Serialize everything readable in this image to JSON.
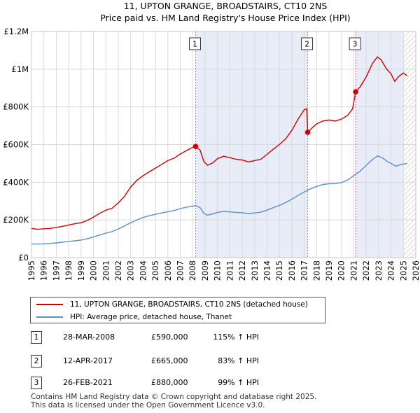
{
  "chart_data": {
    "type": "line",
    "title": "11, UPTON GRANGE, BROADSTAIRS, CT10 2NS",
    "subtitle": "Price paid vs. HM Land Registry's House Price Index (HPI)",
    "xlim": [
      1995,
      2026
    ],
    "ylim": [
      0,
      1200000
    ],
    "x_ticks": [
      "1995",
      "1996",
      "1997",
      "1998",
      "1999",
      "2000",
      "2001",
      "2002",
      "2003",
      "2004",
      "2005",
      "2006",
      "2007",
      "2008",
      "2009",
      "2010",
      "2011",
      "2012",
      "2013",
      "2014",
      "2015",
      "2016",
      "2017",
      "2018",
      "2019",
      "2020",
      "2021",
      "2022",
      "2023",
      "2024",
      "2025",
      "2026"
    ],
    "y_ticks": [
      {
        "value": 0,
        "label": "£0"
      },
      {
        "value": 200000,
        "label": "£200K"
      },
      {
        "value": 400000,
        "label": "£400K"
      },
      {
        "value": 600000,
        "label": "£600K"
      },
      {
        "value": 800000,
        "label": "£800K"
      },
      {
        "value": 1000000,
        "label": "£1M"
      },
      {
        "value": 1200000,
        "label": "£1.2M"
      }
    ],
    "grid": true,
    "shaded_periods": [
      [
        2008.24,
        2017.28
      ],
      [
        2021.15,
        2025.0
      ]
    ],
    "hatched_from": 2025.0,
    "series": [
      {
        "name": "11, UPTON GRANGE, BROADSTAIRS, CT10 2NS (detached house)",
        "color": "#cc0000",
        "points": [
          [
            1995.0,
            155000
          ],
          [
            1995.5,
            150000
          ],
          [
            1996.0,
            153000
          ],
          [
            1996.5,
            155000
          ],
          [
            1997.0,
            160000
          ],
          [
            1997.5,
            166000
          ],
          [
            1998.0,
            173000
          ],
          [
            1998.5,
            180000
          ],
          [
            1999.0,
            185000
          ],
          [
            1999.5,
            197000
          ],
          [
            2000.0,
            215000
          ],
          [
            2000.5,
            235000
          ],
          [
            2001.0,
            252000
          ],
          [
            2001.5,
            262000
          ],
          [
            2002.0,
            290000
          ],
          [
            2002.5,
            325000
          ],
          [
            2003.0,
            375000
          ],
          [
            2003.5,
            410000
          ],
          [
            2004.0,
            435000
          ],
          [
            2004.5,
            455000
          ],
          [
            2005.0,
            475000
          ],
          [
            2005.5,
            495000
          ],
          [
            2006.0,
            515000
          ],
          [
            2006.5,
            528000
          ],
          [
            2007.0,
            550000
          ],
          [
            2007.5,
            568000
          ],
          [
            2008.0,
            585000
          ],
          [
            2008.24,
            590000
          ],
          [
            2008.6,
            570000
          ],
          [
            2008.9,
            510000
          ],
          [
            2009.2,
            490000
          ],
          [
            2009.6,
            502000
          ],
          [
            2010.0,
            525000
          ],
          [
            2010.5,
            538000
          ],
          [
            2011.0,
            530000
          ],
          [
            2011.5,
            522000
          ],
          [
            2012.0,
            518000
          ],
          [
            2012.5,
            508000
          ],
          [
            2013.0,
            515000
          ],
          [
            2013.5,
            522000
          ],
          [
            2014.0,
            548000
          ],
          [
            2014.5,
            575000
          ],
          [
            2015.0,
            600000
          ],
          [
            2015.5,
            630000
          ],
          [
            2016.0,
            675000
          ],
          [
            2016.5,
            735000
          ],
          [
            2017.0,
            785000
          ],
          [
            2017.2,
            790000
          ],
          [
            2017.28,
            665000
          ],
          [
            2017.5,
            680000
          ],
          [
            2018.0,
            710000
          ],
          [
            2018.5,
            725000
          ],
          [
            2019.0,
            730000
          ],
          [
            2019.5,
            725000
          ],
          [
            2020.0,
            735000
          ],
          [
            2020.5,
            755000
          ],
          [
            2020.9,
            790000
          ],
          [
            2021.15,
            880000
          ],
          [
            2021.5,
            905000
          ],
          [
            2022.0,
            960000
          ],
          [
            2022.5,
            1030000
          ],
          [
            2022.9,
            1065000
          ],
          [
            2023.2,
            1050000
          ],
          [
            2023.6,
            1005000
          ],
          [
            2024.0,
            975000
          ],
          [
            2024.3,
            935000
          ],
          [
            2024.6,
            960000
          ],
          [
            2025.0,
            980000
          ],
          [
            2025.3,
            965000
          ]
        ]
      },
      {
        "name": "HPI: Average price, detached house, Thanet",
        "color": "#5b8fc9",
        "points": [
          [
            1995.0,
            72000
          ],
          [
            1995.5,
            72000
          ],
          [
            1996.0,
            73000
          ],
          [
            1996.5,
            75000
          ],
          [
            1997.0,
            78000
          ],
          [
            1997.5,
            82000
          ],
          [
            1998.0,
            86000
          ],
          [
            1998.5,
            89000
          ],
          [
            1999.0,
            93000
          ],
          [
            1999.5,
            100000
          ],
          [
            2000.0,
            110000
          ],
          [
            2000.5,
            120000
          ],
          [
            2001.0,
            130000
          ],
          [
            2001.5,
            138000
          ],
          [
            2002.0,
            152000
          ],
          [
            2002.5,
            168000
          ],
          [
            2003.0,
            185000
          ],
          [
            2003.5,
            200000
          ],
          [
            2004.0,
            213000
          ],
          [
            2004.5,
            222000
          ],
          [
            2005.0,
            230000
          ],
          [
            2005.5,
            237000
          ],
          [
            2006.0,
            243000
          ],
          [
            2006.5,
            250000
          ],
          [
            2007.0,
            260000
          ],
          [
            2007.5,
            268000
          ],
          [
            2008.0,
            273000
          ],
          [
            2008.3,
            275000
          ],
          [
            2008.6,
            265000
          ],
          [
            2008.9,
            235000
          ],
          [
            2009.2,
            225000
          ],
          [
            2009.6,
            232000
          ],
          [
            2010.0,
            240000
          ],
          [
            2010.5,
            245000
          ],
          [
            2011.0,
            243000
          ],
          [
            2011.5,
            240000
          ],
          [
            2012.0,
            238000
          ],
          [
            2012.5,
            234000
          ],
          [
            2013.0,
            237000
          ],
          [
            2013.5,
            241000
          ],
          [
            2014.0,
            252000
          ],
          [
            2014.5,
            265000
          ],
          [
            2015.0,
            277000
          ],
          [
            2015.5,
            292000
          ],
          [
            2016.0,
            310000
          ],
          [
            2016.5,
            330000
          ],
          [
            2017.0,
            348000
          ],
          [
            2017.5,
            365000
          ],
          [
            2018.0,
            378000
          ],
          [
            2018.5,
            388000
          ],
          [
            2019.0,
            392000
          ],
          [
            2019.5,
            393000
          ],
          [
            2020.0,
            398000
          ],
          [
            2020.5,
            412000
          ],
          [
            2021.0,
            435000
          ],
          [
            2021.5,
            458000
          ],
          [
            2022.0,
            490000
          ],
          [
            2022.5,
            520000
          ],
          [
            2022.9,
            540000
          ],
          [
            2023.3,
            530000
          ],
          [
            2023.7,
            510000
          ],
          [
            2024.0,
            500000
          ],
          [
            2024.4,
            485000
          ],
          [
            2024.8,
            495000
          ],
          [
            2025.3,
            500000
          ]
        ]
      }
    ],
    "markers": [
      {
        "label": "1",
        "date": 2008.24,
        "price": 590000
      },
      {
        "label": "2",
        "date": 2017.28,
        "price": 665000
      },
      {
        "label": "3",
        "date": 2021.15,
        "price": 880000
      }
    ]
  },
  "legend": {
    "property_label": "11, UPTON GRANGE, BROADSTAIRS, CT10 2NS (detached house)",
    "hpi_label": "HPI: Average price, detached house, Thanet"
  },
  "sales": [
    {
      "num": "1",
      "date": "28-MAR-2008",
      "price": "£590,000",
      "hpi": "115% ↑ HPI"
    },
    {
      "num": "2",
      "date": "12-APR-2017",
      "price": "£665,000",
      "hpi": "83% ↑ HPI"
    },
    {
      "num": "3",
      "date": "26-FEB-2021",
      "price": "£880,000",
      "hpi": "99% ↑ HPI"
    }
  ],
  "footer": {
    "line1": "Contains HM Land Registry data © Crown copyright and database right 2025.",
    "line2": "This data is licensed under the Open Government Licence v3.0."
  }
}
